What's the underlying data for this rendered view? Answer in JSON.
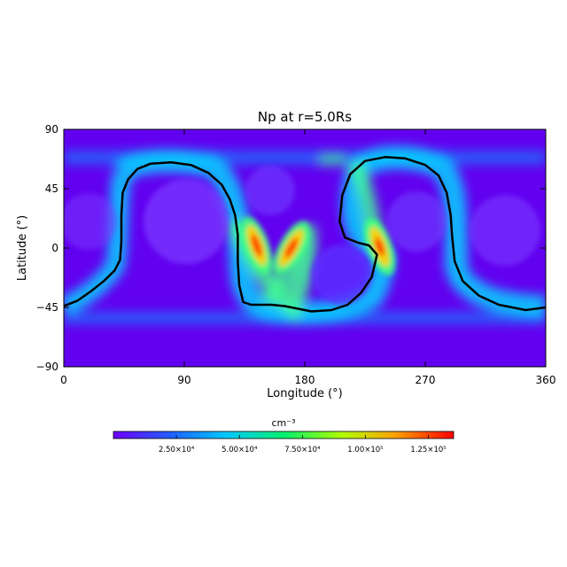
{
  "chart_data": {
    "type": "heatmap",
    "title": "Np at r=5.0Rs",
    "xlabel": "Longitude (°)",
    "ylabel": "Latitude (°)",
    "xlim": [
      0,
      360
    ],
    "ylim": [
      -90,
      90
    ],
    "xticks": [
      0,
      90,
      180,
      270,
      360
    ],
    "yticks": [
      -90,
      -45,
      0,
      45,
      90
    ],
    "xtick_labels": [
      "0",
      "90",
      "180",
      "270",
      "360"
    ],
    "ytick_labels": [
      "−90",
      "−45",
      "0",
      "45",
      "90"
    ],
    "colorbar": {
      "label": "cm⁻³",
      "min": 0,
      "max": 135000,
      "ticks": [
        25000,
        50000,
        75000,
        100000,
        125000
      ],
      "tick_labels": [
        "2.50×10⁴",
        "5.00×10⁴",
        "7.50×10⁴",
        "1.00×10⁵",
        "1.25×10⁵"
      ],
      "colormap": [
        "#6a00ff",
        "#0050ff",
        "#00c8ff",
        "#00ff80",
        "#ffff00",
        "#ff8000",
        "#ff0000"
      ]
    },
    "background_color": "#6200f0",
    "neutral_line": {
      "name": "neutral line",
      "color": "#000000",
      "points": [
        [
          0,
          -44
        ],
        [
          10,
          -40
        ],
        [
          20,
          -33
        ],
        [
          30,
          -25
        ],
        [
          38,
          -17
        ],
        [
          42,
          -9
        ],
        [
          43,
          5
        ],
        [
          43,
          25
        ],
        [
          44,
          42
        ],
        [
          48,
          52
        ],
        [
          55,
          60
        ],
        [
          65,
          64
        ],
        [
          80,
          65
        ],
        [
          95,
          63
        ],
        [
          108,
          57
        ],
        [
          118,
          48
        ],
        [
          124,
          37
        ],
        [
          128,
          25
        ],
        [
          130,
          10
        ],
        [
          130,
          -10
        ],
        [
          131,
          -28
        ],
        [
          134,
          -41
        ],
        [
          140,
          -43
        ],
        [
          155,
          -43
        ],
        [
          165,
          -44
        ],
        [
          175,
          -46
        ],
        [
          185,
          -48
        ],
        [
          200,
          -47
        ],
        [
          212,
          -43
        ],
        [
          222,
          -34
        ],
        [
          230,
          -22
        ],
        [
          234,
          -5
        ],
        [
          228,
          2
        ],
        [
          220,
          4
        ],
        [
          210,
          8
        ],
        [
          206,
          20
        ],
        [
          208,
          40
        ],
        [
          214,
          56
        ],
        [
          225,
          66
        ],
        [
          240,
          69
        ],
        [
          255,
          68
        ],
        [
          270,
          63
        ],
        [
          280,
          55
        ],
        [
          286,
          42
        ],
        [
          289,
          25
        ],
        [
          290,
          10
        ],
        [
          292,
          -10
        ],
        [
          298,
          -25
        ],
        [
          310,
          -36
        ],
        [
          325,
          -43
        ],
        [
          345,
          -47
        ],
        [
          360,
          -45
        ]
      ]
    },
    "hotspots": [
      {
        "lon": 144,
        "lat": 2,
        "value": 130000
      },
      {
        "lon": 170,
        "lat": 0,
        "value": 125000
      },
      {
        "lon": 236,
        "lat": 1,
        "value": 105000
      }
    ]
  }
}
